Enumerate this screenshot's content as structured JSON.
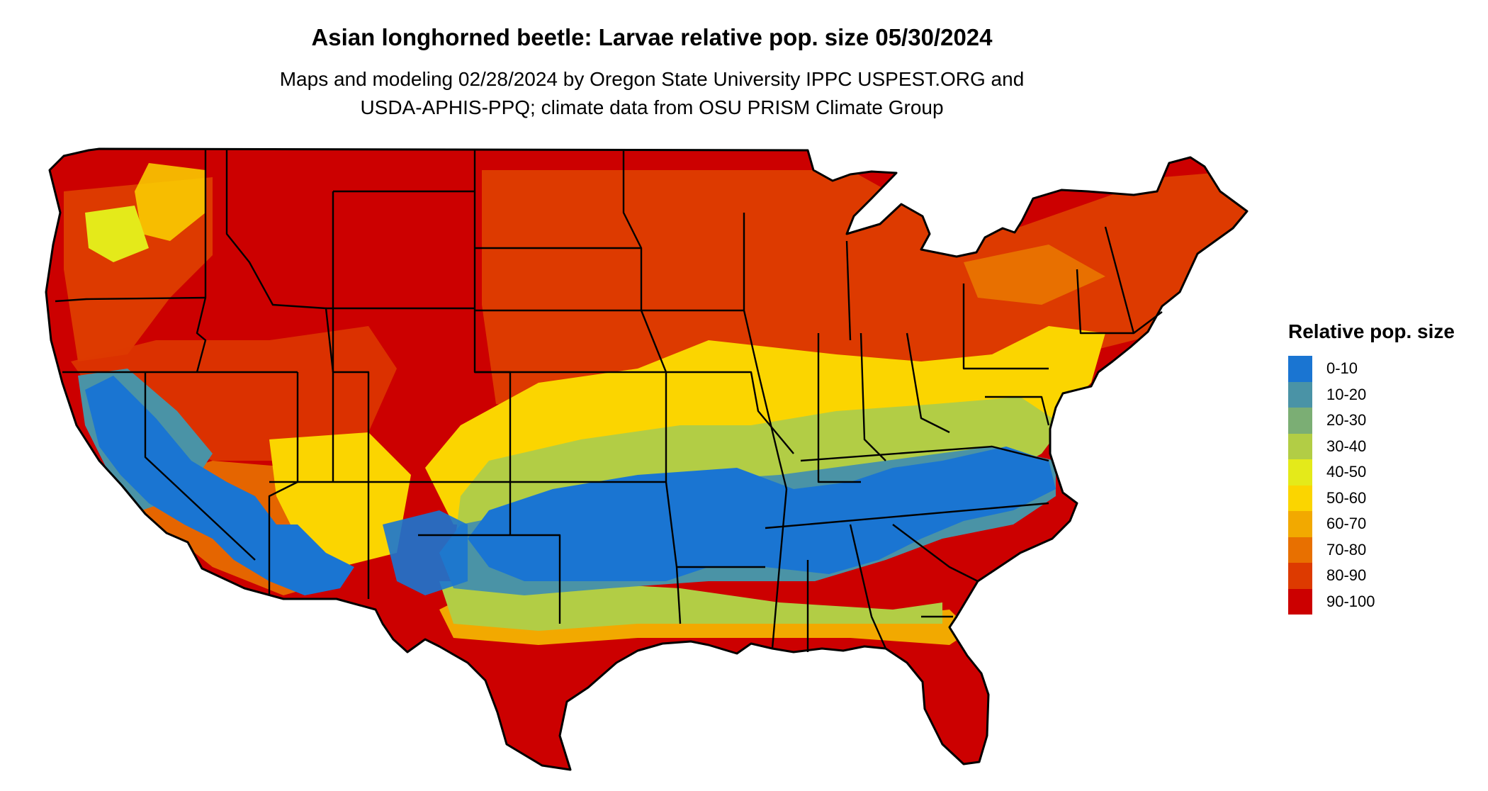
{
  "title": "Asian longhorned beetle: Larvae relative pop. size 05/30/2024",
  "subtitle_lines": [
    "Maps and modeling 02/28/2024 by Oregon State University IPPC USPEST.ORG and",
    "USDA-APHIS-PPQ; climate data from OSU PRISM Climate Group"
  ],
  "legend": {
    "title": "Relative pop. size",
    "items": [
      {
        "label": "0-10",
        "color": "#1a75d2"
      },
      {
        "label": "10-20",
        "color": "#4a93a6"
      },
      {
        "label": "20-30",
        "color": "#7bae74"
      },
      {
        "label": "30-40",
        "color": "#b2cd45"
      },
      {
        "label": "40-50",
        "color": "#e4ea1a"
      },
      {
        "label": "50-60",
        "color": "#fbd500"
      },
      {
        "label": "60-70",
        "color": "#f2a900"
      },
      {
        "label": "70-80",
        "color": "#e87000"
      },
      {
        "label": "80-90",
        "color": "#dd3a00"
      },
      {
        "label": "90-100",
        "color": "#cc0000"
      }
    ]
  },
  "map": {
    "region": "contiguous-united-states",
    "boundary_color": "#000000"
  }
}
